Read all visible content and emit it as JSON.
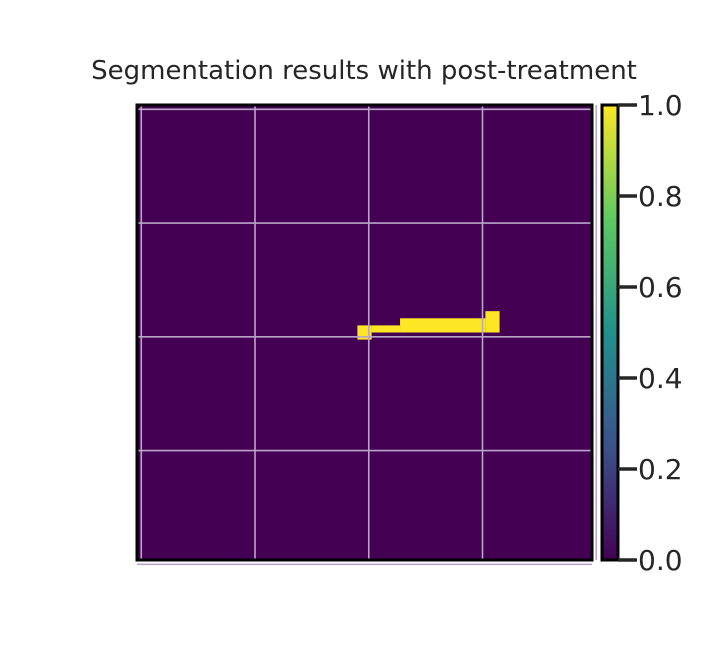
{
  "chart_data": {
    "type": "heatmap",
    "title": "Segmentation results with post-treatment",
    "xlabel": "",
    "ylabel": "",
    "grid": true,
    "xlim": [
      0,
      32
    ],
    "ylim": [
      32,
      0
    ],
    "grid_lines_x": [
      0.3,
      8.3,
      16.3,
      24.3,
      32.3
    ],
    "grid_lines_y": [
      0.3,
      8.3,
      16.3,
      24.3,
      32.3
    ],
    "colormap": "viridis",
    "colormap_stops": [
      "#440154",
      "#3b528b",
      "#21918c",
      "#5ec962",
      "#fde725"
    ],
    "background_value": 0.0,
    "foreground_value": 1.0,
    "foreground_rects": [
      {
        "x0": 15.5,
        "x1": 16.5,
        "y0": 15.5,
        "y1": 16.5
      },
      {
        "x0": 16.5,
        "x1": 18.5,
        "y0": 15.5,
        "y1": 16.0
      },
      {
        "x0": 18.5,
        "x1": 24.5,
        "y0": 15.0,
        "y1": 16.0
      },
      {
        "x0": 24.5,
        "x1": 25.5,
        "y0": 14.5,
        "y1": 16.0
      }
    ],
    "colorbar": {
      "min": 0.0,
      "max": 1.0,
      "ticks": [
        "0.0",
        "0.2",
        "0.4",
        "0.6",
        "0.8",
        "1.0"
      ]
    }
  }
}
